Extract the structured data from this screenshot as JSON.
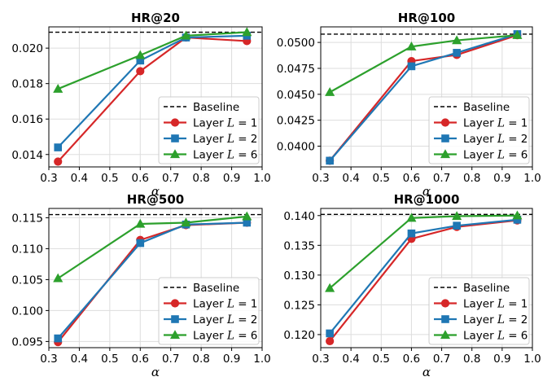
{
  "colors": {
    "baseline": "#000000",
    "layer1": "#d62728",
    "layer2": "#1f77b4",
    "layer6": "#2ca02c",
    "grid": "#dddddd"
  },
  "legend": {
    "placement": "lower-right",
    "entries": [
      {
        "key": "baseline",
        "label": "Baseline",
        "marker": "none",
        "dash": true
      },
      {
        "key": "layer1",
        "prefix": "Layer ",
        "var": "L",
        "suffix": " = 1",
        "marker": "circle"
      },
      {
        "key": "layer2",
        "prefix": "Layer ",
        "var": "L",
        "suffix": " = 2",
        "marker": "square"
      },
      {
        "key": "layer6",
        "prefix": "Layer ",
        "var": "L",
        "suffix": " = 6",
        "marker": "triangle"
      }
    ]
  },
  "chart_data": [
    {
      "type": "line",
      "title": "HR@20",
      "xlabel": "α",
      "ylabel": "",
      "xlim": [
        0.3,
        1.0
      ],
      "ylim": [
        0.0133,
        0.0212
      ],
      "xticks": [
        "0.3",
        "0.4",
        "0.5",
        "0.6",
        "0.7",
        "0.8",
        "0.9",
        "1.0"
      ],
      "yticks": [
        "0.014",
        "0.016",
        "0.018",
        "0.020"
      ],
      "grid": true,
      "baseline": 0.0209,
      "x": [
        0.33,
        0.6,
        0.75,
        0.95
      ],
      "series": [
        {
          "key": "layer1",
          "name": "Layer L = 1",
          "values": [
            0.0136,
            0.0187,
            0.0206,
            0.0204
          ]
        },
        {
          "key": "layer2",
          "name": "Layer L = 2",
          "values": [
            0.0144,
            0.0193,
            0.0206,
            0.0207
          ]
        },
        {
          "key": "layer6",
          "name": "Layer L = 6",
          "values": [
            0.0177,
            0.0196,
            0.0207,
            0.0209
          ]
        }
      ]
    },
    {
      "type": "line",
      "title": "HR@100",
      "xlabel": "α",
      "ylabel": "",
      "xlim": [
        0.3,
        1.0
      ],
      "ylim": [
        0.038,
        0.0515
      ],
      "xticks": [
        "0.3",
        "0.4",
        "0.5",
        "0.6",
        "0.7",
        "0.8",
        "0.9",
        "1.0"
      ],
      "yticks": [
        "0.0400",
        "0.0425",
        "0.0450",
        "0.0475",
        "0.0500"
      ],
      "grid": true,
      "baseline": 0.0508,
      "x": [
        0.33,
        0.6,
        0.75,
        0.95
      ],
      "series": [
        {
          "key": "layer1",
          "name": "Layer L = 1",
          "values": [
            0.0386,
            0.0482,
            0.0488,
            0.0507
          ]
        },
        {
          "key": "layer2",
          "name": "Layer L = 2",
          "values": [
            0.0386,
            0.0477,
            0.049,
            0.0508
          ]
        },
        {
          "key": "layer6",
          "name": "Layer L = 6",
          "values": [
            0.0452,
            0.0496,
            0.0502,
            0.0507
          ]
        }
      ]
    },
    {
      "type": "line",
      "title": "HR@500",
      "xlabel": "α",
      "ylabel": "",
      "xlim": [
        0.3,
        1.0
      ],
      "ylim": [
        0.094,
        0.1165
      ],
      "xticks": [
        "0.3",
        "0.4",
        "0.5",
        "0.6",
        "0.7",
        "0.8",
        "0.9",
        "1.0"
      ],
      "yticks": [
        "0.095",
        "0.100",
        "0.105",
        "0.110",
        "0.115"
      ],
      "grid": true,
      "baseline": 0.1155,
      "x": [
        0.33,
        0.6,
        0.75,
        0.95
      ],
      "series": [
        {
          "key": "layer1",
          "name": "Layer L = 1",
          "values": [
            0.0949,
            0.1114,
            0.1138,
            0.1142
          ]
        },
        {
          "key": "layer2",
          "name": "Layer L = 2",
          "values": [
            0.0955,
            0.1109,
            0.1139,
            0.1142
          ]
        },
        {
          "key": "layer6",
          "name": "Layer L = 6",
          "values": [
            0.1052,
            0.114,
            0.1142,
            0.1152
          ]
        }
      ]
    },
    {
      "type": "line",
      "title": "HR@1000",
      "xlabel": "α",
      "ylabel": "",
      "xlim": [
        0.3,
        1.0
      ],
      "ylim": [
        0.1178,
        0.1412
      ],
      "xticks": [
        "0.3",
        "0.4",
        "0.5",
        "0.6",
        "0.7",
        "0.8",
        "0.9",
        "1.0"
      ],
      "yticks": [
        "0.120",
        "0.125",
        "0.130",
        "0.135",
        "0.140"
      ],
      "grid": true,
      "baseline": 0.1402,
      "x": [
        0.33,
        0.6,
        0.75,
        0.95
      ],
      "series": [
        {
          "key": "layer1",
          "name": "Layer L = 1",
          "values": [
            0.1189,
            0.1361,
            0.1381,
            0.1392
          ]
        },
        {
          "key": "layer2",
          "name": "Layer L = 2",
          "values": [
            0.1202,
            0.137,
            0.1383,
            0.1393
          ]
        },
        {
          "key": "layer6",
          "name": "Layer L = 6",
          "values": [
            0.1278,
            0.1396,
            0.1399,
            0.14
          ]
        }
      ]
    }
  ]
}
